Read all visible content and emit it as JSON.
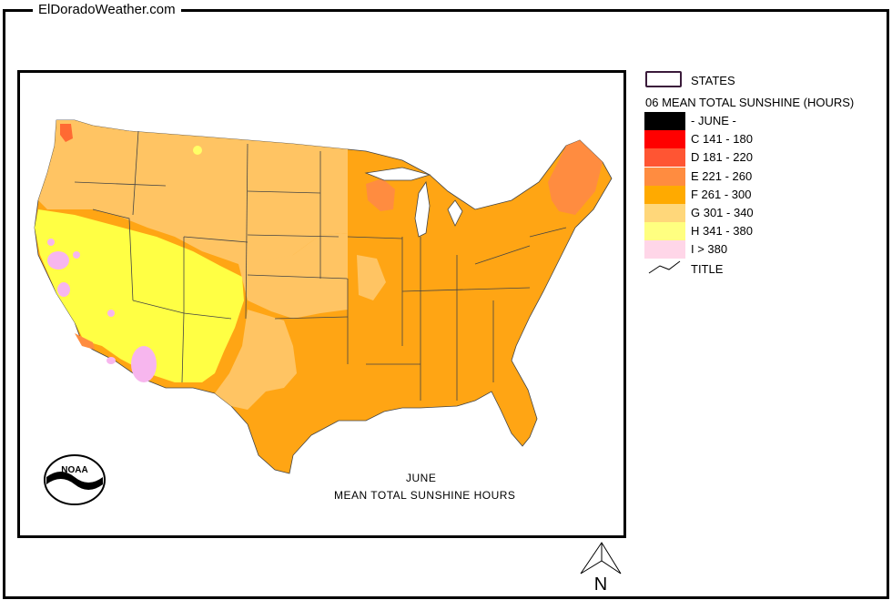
{
  "site": {
    "title": "ElDoradoWeather.com"
  },
  "map": {
    "caption_month": "JUNE",
    "caption_title": "MEAN TOTAL SUNSHINE HOURS",
    "logo_name": "NOAA",
    "logo_text": "NOAA"
  },
  "legend": {
    "states_label": "STATES",
    "heading": "06 MEAN TOTAL SUNSHINE (HOURS)",
    "items": [
      {
        "label": "- JUNE -",
        "color": "#000000"
      },
      {
        "label": "C 141 - 180",
        "color": "#ff0000"
      },
      {
        "label": "D 181 - 220",
        "color": "#ff5533"
      },
      {
        "label": "E 221 - 260",
        "color": "#ff8c40"
      },
      {
        "label": "F 261 - 300",
        "color": "#ffaa00"
      },
      {
        "label": "G 301 - 340",
        "color": "#ffd77a"
      },
      {
        "label": "H 341 - 380",
        "color": "#ffff80"
      },
      {
        "label": "I > 380",
        "color": "#ffd6e8"
      }
    ],
    "title_label": "TITLE"
  },
  "compass": {
    "letter": "N"
  },
  "colors": {
    "F": "#ffa514",
    "G": "#ffc463",
    "H": "#ffff44",
    "E": "#ff8c40",
    "I": "#f7b6ee",
    "border": "#444444"
  }
}
